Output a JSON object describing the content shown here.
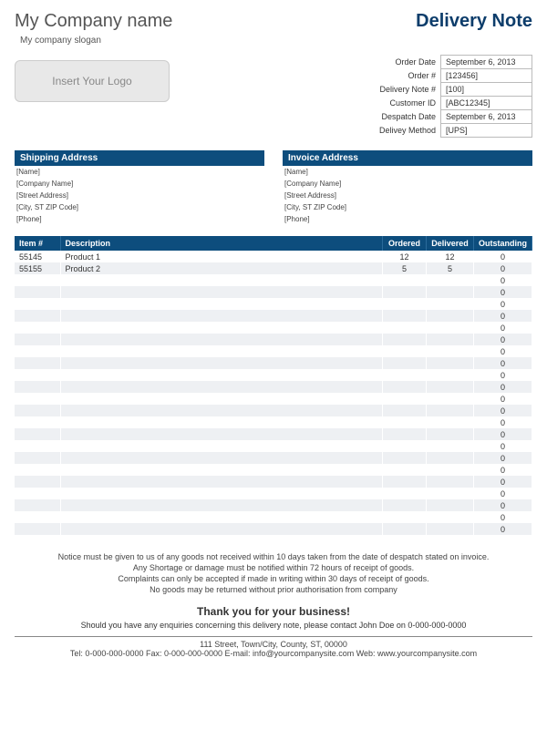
{
  "company": {
    "name": "My Company name",
    "slogan": "My company slogan",
    "logo_placeholder": "Insert Your Logo"
  },
  "doc_title": "Delivery Note",
  "meta": {
    "labels": {
      "order_date": "Order Date",
      "order_no": "Order #",
      "delivery_note_no": "Delivery Note #",
      "customer_id": "Customer ID",
      "despatch_date": "Despatch Date",
      "delivery_method": "Delivey Method"
    },
    "values": {
      "order_date": "September 6, 2013",
      "order_no": "[123456]",
      "delivery_note_no": "[100]",
      "customer_id": "[ABC12345]",
      "despatch_date": "September 6, 2013",
      "delivery_method": "[UPS]"
    }
  },
  "shipping": {
    "header": "Shipping Address",
    "lines": [
      "[Name]",
      "[Company Name]",
      "[Street Address]",
      "[City, ST  ZIP Code]",
      "[Phone]"
    ]
  },
  "invoice": {
    "header": "Invoice Address",
    "lines": [
      "[Name]",
      "[Company Name]",
      "[Street Address]",
      "[City, ST  ZIP Code]",
      "[Phone]"
    ]
  },
  "table": {
    "columns": {
      "item": "Item #",
      "desc": "Description",
      "ordered": "Ordered",
      "delivered": "Delivered",
      "outstanding": "Outstanding"
    },
    "rows": [
      {
        "item": "55145",
        "desc": "Product 1",
        "ordered": "12",
        "delivered": "12",
        "outstanding": "0"
      },
      {
        "item": "55155",
        "desc": "Product 2",
        "ordered": "5",
        "delivered": "5",
        "outstanding": "0"
      },
      {
        "item": "",
        "desc": "",
        "ordered": "",
        "delivered": "",
        "outstanding": "0"
      },
      {
        "item": "",
        "desc": "",
        "ordered": "",
        "delivered": "",
        "outstanding": "0"
      },
      {
        "item": "",
        "desc": "",
        "ordered": "",
        "delivered": "",
        "outstanding": "0"
      },
      {
        "item": "",
        "desc": "",
        "ordered": "",
        "delivered": "",
        "outstanding": "0"
      },
      {
        "item": "",
        "desc": "",
        "ordered": "",
        "delivered": "",
        "outstanding": "0"
      },
      {
        "item": "",
        "desc": "",
        "ordered": "",
        "delivered": "",
        "outstanding": "0"
      },
      {
        "item": "",
        "desc": "",
        "ordered": "",
        "delivered": "",
        "outstanding": "0"
      },
      {
        "item": "",
        "desc": "",
        "ordered": "",
        "delivered": "",
        "outstanding": "0"
      },
      {
        "item": "",
        "desc": "",
        "ordered": "",
        "delivered": "",
        "outstanding": "0"
      },
      {
        "item": "",
        "desc": "",
        "ordered": "",
        "delivered": "",
        "outstanding": "0"
      },
      {
        "item": "",
        "desc": "",
        "ordered": "",
        "delivered": "",
        "outstanding": "0"
      },
      {
        "item": "",
        "desc": "",
        "ordered": "",
        "delivered": "",
        "outstanding": "0"
      },
      {
        "item": "",
        "desc": "",
        "ordered": "",
        "delivered": "",
        "outstanding": "0"
      },
      {
        "item": "",
        "desc": "",
        "ordered": "",
        "delivered": "",
        "outstanding": "0"
      },
      {
        "item": "",
        "desc": "",
        "ordered": "",
        "delivered": "",
        "outstanding": "0"
      },
      {
        "item": "",
        "desc": "",
        "ordered": "",
        "delivered": "",
        "outstanding": "0"
      },
      {
        "item": "",
        "desc": "",
        "ordered": "",
        "delivered": "",
        "outstanding": "0"
      },
      {
        "item": "",
        "desc": "",
        "ordered": "",
        "delivered": "",
        "outstanding": "0"
      },
      {
        "item": "",
        "desc": "",
        "ordered": "",
        "delivered": "",
        "outstanding": "0"
      },
      {
        "item": "",
        "desc": "",
        "ordered": "",
        "delivered": "",
        "outstanding": "0"
      },
      {
        "item": "",
        "desc": "",
        "ordered": "",
        "delivered": "",
        "outstanding": "0"
      },
      {
        "item": "",
        "desc": "",
        "ordered": "",
        "delivered": "",
        "outstanding": "0"
      }
    ]
  },
  "notice": {
    "l1": "Notice must be given to us of any goods not received within 10 days taken from the date of despatch stated on invoice.",
    "l2": "Any Shortage or damage must be notified within 72 hours of receipt of goods.",
    "l3": "Complaints can only be accepted if made in writing within 30 days of receipt of goods.",
    "l4": "No goods may be returned without prior authorisation from company"
  },
  "thanks": "Thank you for your business!",
  "enquiry": "Should you have any enquiries concerning this delivery note, please contact John Doe on 0-000-000-0000",
  "footer": {
    "l1": "111 Street, Town/City, County, ST, 00000",
    "l2": "Tel: 0-000-000-0000 Fax: 0-000-000-0000 E-mail: info@yourcompanysite.com Web: www.yourcompanysite.com"
  },
  "colors": {
    "brand_blue": "#0d4d7d",
    "title_blue": "#0d3d6b",
    "row_alt": "#eef0f3"
  }
}
